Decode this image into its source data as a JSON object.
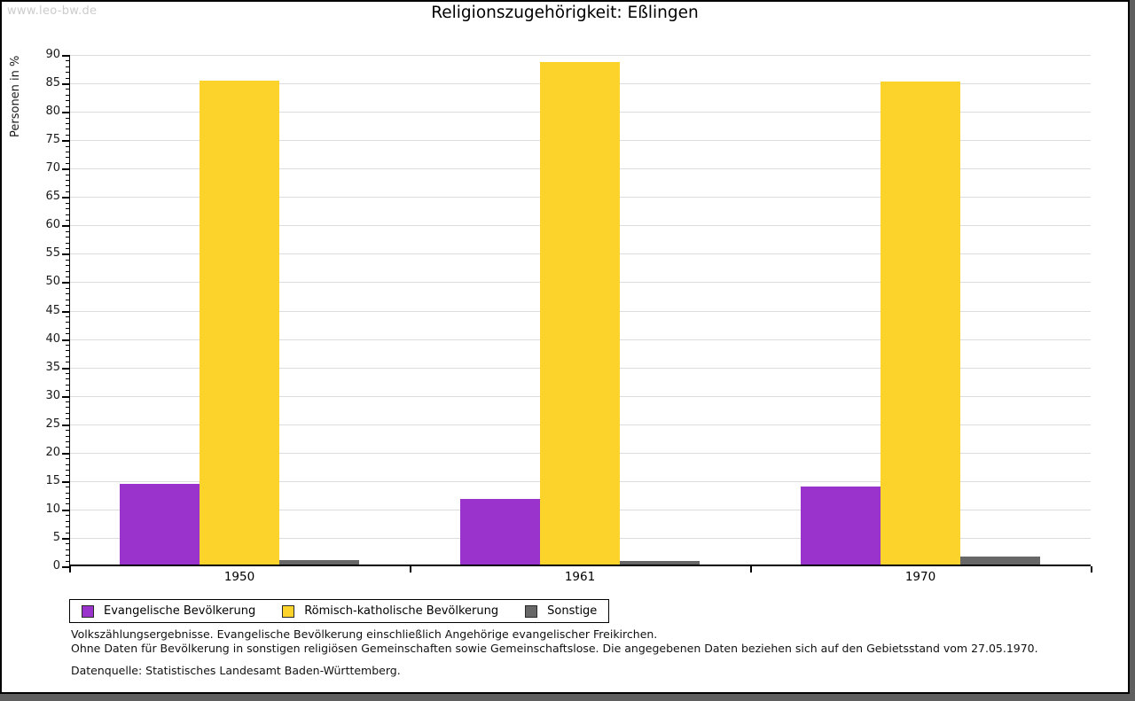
{
  "watermark": "www.leo-bw.de",
  "title": "Religionszugehörigkeit: Eßlingen",
  "chart_data": {
    "type": "bar",
    "title": "Religionszugehörigkeit: Eßlingen",
    "categories": [
      "1950",
      "1961",
      "1970"
    ],
    "series": [
      {
        "name": "Evangelische Bevölkerung",
        "color": "#9933cc",
        "values": [
          14.2,
          11.6,
          13.8
        ]
      },
      {
        "name": "Römisch-katholische Bevölkerung",
        "color": "#fcd32a",
        "values": [
          85.2,
          88.4,
          85.0
        ]
      },
      {
        "name": "Sonstige",
        "color": "#676767",
        "values": [
          0.8,
          0.6,
          1.4
        ]
      }
    ],
    "xlabel": "",
    "ylabel": "Personen in %",
    "ylim": [
      0,
      90
    ],
    "ytick_step": 5,
    "yminor_step": 1,
    "grid": true,
    "legend_position": "bottom-left"
  },
  "footnotes": {
    "line1": "Volkszählungsergebnisse. Evangelische Bevölkerung einschließlich Angehörige evangelischer Freikirchen.",
    "line2": "Ohne Daten für Bevölkerung in sonstigen religiösen Gemeinschaften sowie Gemeinschaftslose. Die angegebenen Daten beziehen sich auf den Gebietsstand vom 27.05.1970.",
    "source": "Datenquelle: Statistisches Landesamt Baden-Württemberg."
  },
  "colors": {
    "evangelisch": "#9933cc",
    "katholisch": "#fcd32a",
    "sonstige": "#676767",
    "gridline": "#dcdcdc",
    "watermark": "#cccccc",
    "frame": "#5f5f5f"
  }
}
